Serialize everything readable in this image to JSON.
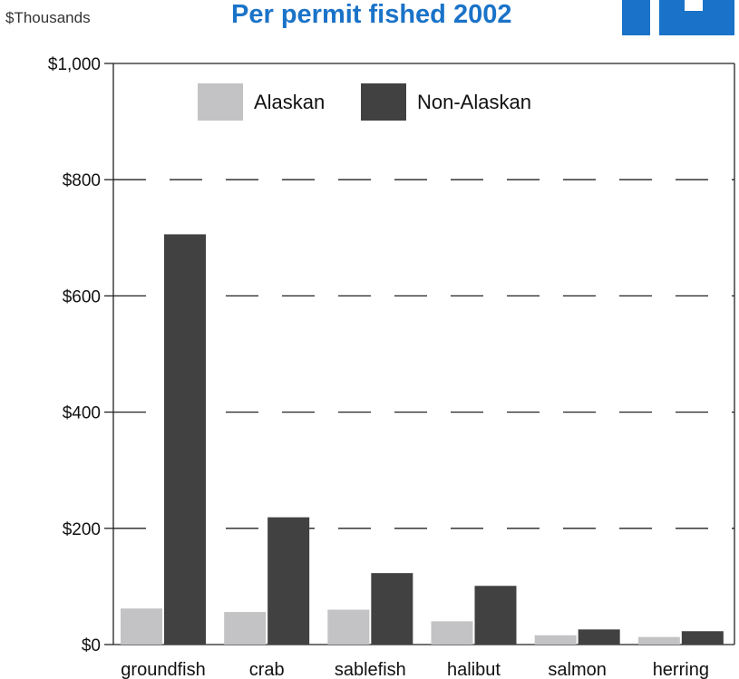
{
  "chart_data": {
    "type": "bar",
    "title": "Per permit fished 2002",
    "unit_label": "$Thousands",
    "categories": [
      "groundfish",
      "crab",
      "sablefish",
      "halibut",
      "salmon",
      "herring"
    ],
    "series": [
      {
        "name": "Alaskan",
        "color": "#c3c3c5",
        "values": [
          62,
          56,
          60,
          40,
          16,
          13
        ]
      },
      {
        "name": "Non-Alaskan",
        "color": "#414141",
        "values": [
          706,
          219,
          123,
          101,
          26,
          23
        ]
      }
    ],
    "ylim": [
      0,
      1000
    ],
    "yticks": [
      0,
      200,
      400,
      600,
      800,
      1000
    ],
    "ytick_labels": [
      "$0",
      "$200",
      "$400",
      "$600",
      "$800",
      "$1,000"
    ],
    "grid": "dashed-horizontal",
    "legend_position": "top"
  },
  "accent_color": "#1a73c8"
}
